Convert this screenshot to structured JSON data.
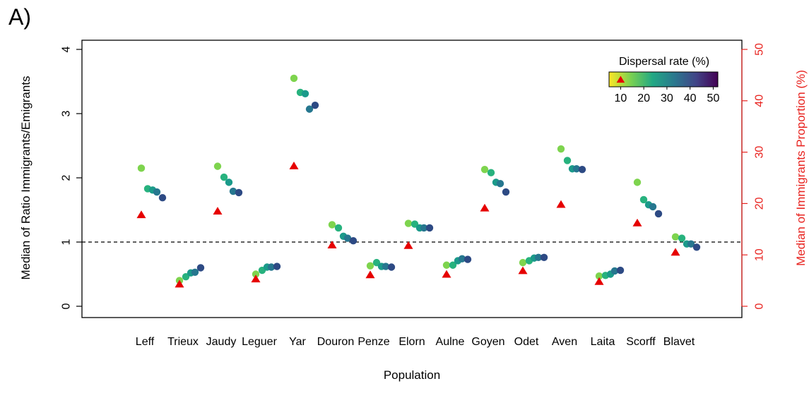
{
  "panel_label": "A)",
  "chart_data": {
    "type": "scatter",
    "xlabel": "Population",
    "ylabel": "Median of Ratio Immigrants/Emigrants",
    "ylabel_right": "Median of Immigrants Proportion (%)",
    "ylim": [
      0,
      4
    ],
    "ylim_right": [
      0,
      50
    ],
    "yticks": [
      "0",
      "1",
      "2",
      "3",
      "4"
    ],
    "yticks_right": [
      "0",
      "10",
      "20",
      "30",
      "40",
      "50"
    ],
    "reference_line": 1,
    "grid": false,
    "categories": [
      "Leff",
      "Trieux",
      "Jaudy",
      "Leguer",
      "Yar",
      "Douron",
      "Penze",
      "Elorn",
      "Aulne",
      "Goyen",
      "Odet",
      "Aven",
      "Laita",
      "Scorff",
      "Blavet"
    ],
    "dispersal_rates": [
      10,
      20,
      30,
      40,
      50
    ],
    "ratio_series": [
      {
        "values": [
          2.15,
          1.83,
          1.81,
          1.78,
          1.69
        ]
      },
      {
        "values": [
          0.4,
          0.46,
          0.52,
          0.53,
          0.6
        ]
      },
      {
        "values": [
          2.18,
          2.01,
          1.93,
          1.79,
          1.77
        ]
      },
      {
        "values": [
          0.5,
          0.56,
          0.61,
          0.61,
          0.62
        ]
      },
      {
        "values": [
          3.55,
          3.33,
          3.31,
          3.07,
          3.13
        ]
      },
      {
        "values": [
          1.27,
          1.22,
          1.09,
          1.06,
          1.02
        ]
      },
      {
        "values": [
          0.63,
          0.68,
          0.62,
          0.62,
          0.61
        ]
      },
      {
        "values": [
          1.29,
          1.28,
          1.22,
          1.22,
          1.22
        ]
      },
      {
        "values": [
          0.64,
          0.64,
          0.71,
          0.74,
          0.73
        ]
      },
      {
        "values": [
          2.13,
          2.08,
          1.93,
          1.91,
          1.78
        ]
      },
      {
        "values": [
          0.68,
          0.71,
          0.75,
          0.76,
          0.76
        ]
      },
      {
        "values": [
          2.45,
          2.27,
          2.14,
          2.14,
          2.13
        ]
      },
      {
        "values": [
          0.47,
          0.48,
          0.5,
          0.55,
          0.56
        ]
      },
      {
        "values": [
          1.93,
          1.66,
          1.58,
          1.55,
          1.44
        ]
      },
      {
        "values": [
          1.08,
          1.06,
          0.97,
          0.97,
          0.92
        ]
      }
    ],
    "immigrants_proportion": [
      17.8,
      4.3,
      18.5,
      5.3,
      27.3,
      11.9,
      6.1,
      11.8,
      6.2,
      19.1,
      6.9,
      19.8,
      4.8,
      16.2,
      10.5
    ],
    "legend": {
      "title": "Dispersal rate (%)",
      "ticks": [
        "10",
        "20",
        "30",
        "40",
        "50"
      ],
      "range": [
        5,
        52
      ],
      "marker_value": 10,
      "placement": "top-right"
    },
    "colors": {
      "axis": "#000000",
      "right_axis": "#e8231f",
      "triangle": "#e60000",
      "colormap": [
        "#fde725",
        "#7ad151",
        "#22a884",
        "#2a788e",
        "#414487",
        "#440154"
      ],
      "point_colors": [
        "#7ed44e",
        "#27b27e",
        "#1b9a8a",
        "#26778f",
        "#2d4a84"
      ]
    }
  }
}
